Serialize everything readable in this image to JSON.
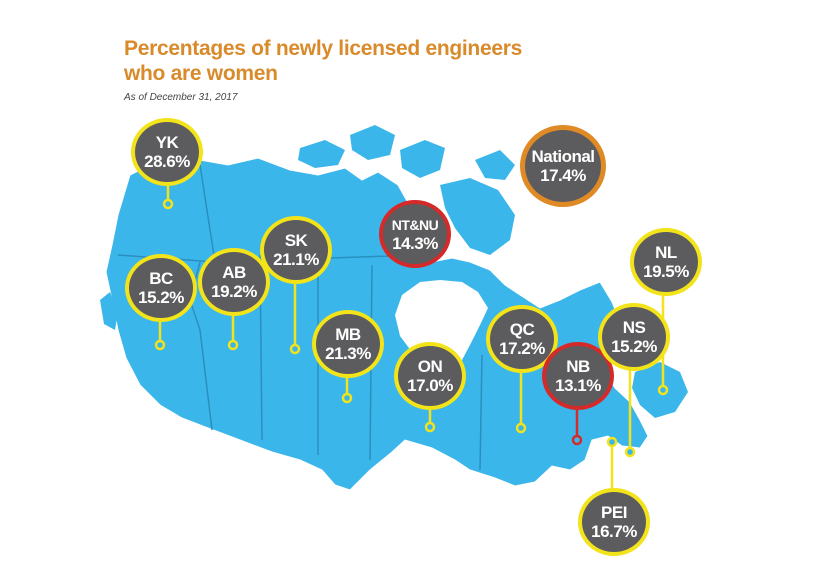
{
  "title_line1": "Percentages of newly licensed engineers",
  "title_line2": "who are women",
  "subtitle": "As of December 31, 2017",
  "colors": {
    "land": "#3bb6ea",
    "border": "#2a8fbf",
    "bubble_fill": "#5c5c5e",
    "yellow": "#f2e31b",
    "red": "#d42a2a",
    "orange": "#e08a26",
    "title": "#d98a2b"
  },
  "regions": [
    {
      "id": "yk",
      "code": "YK",
      "value": "28.6%",
      "ring": "yellow"
    },
    {
      "id": "bc",
      "code": "BC",
      "value": "15.2%",
      "ring": "yellow"
    },
    {
      "id": "ab",
      "code": "AB",
      "value": "19.2%",
      "ring": "yellow"
    },
    {
      "id": "sk",
      "code": "SK",
      "value": "21.1%",
      "ring": "yellow"
    },
    {
      "id": "mb",
      "code": "MB",
      "value": "21.3%",
      "ring": "yellow"
    },
    {
      "id": "on",
      "code": "ON",
      "value": "17.0%",
      "ring": "yellow"
    },
    {
      "id": "qc",
      "code": "QC",
      "value": "17.2%",
      "ring": "yellow"
    },
    {
      "id": "ntnu",
      "code": "NT&NU",
      "value": "14.3%",
      "ring": "red"
    },
    {
      "id": "nb",
      "code": "NB",
      "value": "13.1%",
      "ring": "red"
    },
    {
      "id": "ns",
      "code": "NS",
      "value": "15.2%",
      "ring": "yellow"
    },
    {
      "id": "nl",
      "code": "NL",
      "value": "19.5%",
      "ring": "yellow"
    },
    {
      "id": "pei",
      "code": "PEI",
      "value": "16.7%",
      "ring": "yellow"
    }
  ],
  "national": {
    "code": "National",
    "value": "17.4%",
    "ring": "orange"
  }
}
